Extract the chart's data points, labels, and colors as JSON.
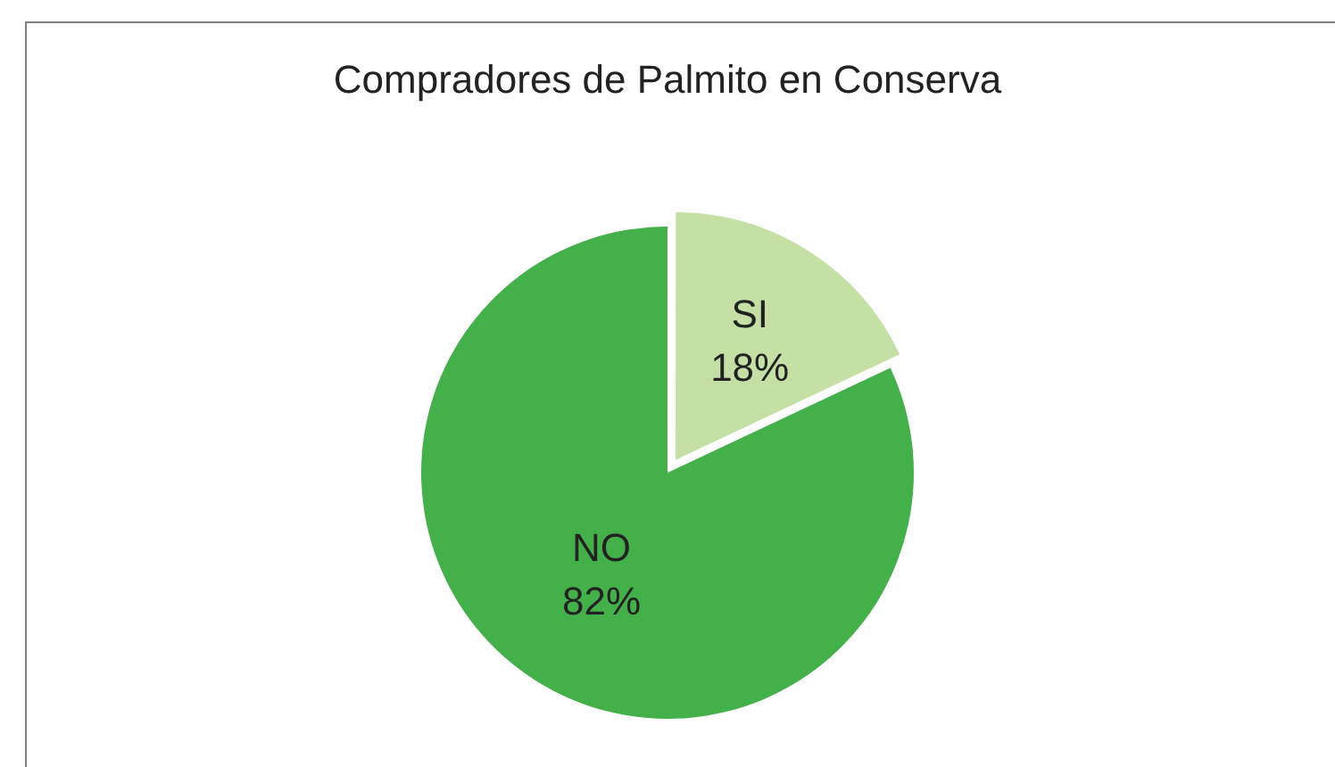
{
  "chart_data": {
    "type": "pie",
    "title": "Compradores de Palmito en Conserva",
    "categories": [
      "SI",
      "NO"
    ],
    "values": [
      18,
      82
    ],
    "value_labels": [
      "18%",
      "82%"
    ],
    "colors": [
      "#c5e0a5",
      "#44b04a"
    ],
    "legend": false
  }
}
